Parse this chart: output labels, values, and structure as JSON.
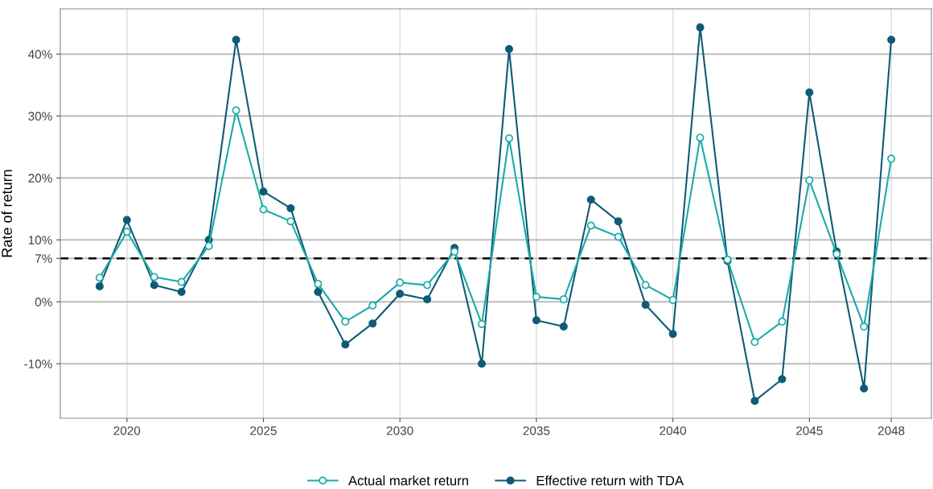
{
  "chart_data": {
    "type": "line",
    "ylabel": "Rate of return",
    "x": [
      2019,
      2020,
      2021,
      2022,
      2023,
      2024,
      2025,
      2026,
      2027,
      2028,
      2029,
      2030,
      2031,
      2032,
      2033,
      2034,
      2035,
      2036,
      2037,
      2038,
      2039,
      2040,
      2041,
      2042,
      2043,
      2044,
      2045,
      2046,
      2047,
      2048
    ],
    "series": [
      {
        "name": "Actual market return",
        "color": "#19aaa9",
        "marker": "circle_open",
        "values": [
          3.9,
          11.3,
          4.0,
          3.2,
          9.0,
          30.9,
          14.9,
          13.0,
          2.9,
          -3.2,
          -0.6,
          3.1,
          2.7,
          8.1,
          -3.6,
          26.4,
          0.8,
          0.4,
          12.3,
          10.5,
          2.7,
          0.3,
          26.5,
          6.8,
          -6.5,
          -3.2,
          19.6,
          7.7,
          -4.0,
          23.1
        ]
      },
      {
        "name": "Effective return with TDA",
        "color": "#0e5b75",
        "marker": "circle",
        "values": [
          2.5,
          13.2,
          2.7,
          1.6,
          10.0,
          42.3,
          17.8,
          15.1,
          1.6,
          -6.9,
          -3.5,
          1.3,
          0.4,
          8.7,
          -10.0,
          40.8,
          -3.0,
          -4.0,
          16.5,
          13.0,
          -0.5,
          -5.2,
          44.3,
          6.6,
          -16.0,
          -12.5,
          33.8,
          8.1,
          -14.0,
          42.3
        ]
      }
    ],
    "xlim": [
      2017.56,
      2049.47
    ],
    "ylim": [
      -18.8,
      47.3
    ],
    "xticks": [
      2020,
      2025,
      2030,
      2035,
      2040,
      2045,
      2048
    ],
    "yticks": [
      {
        "value": -10,
        "label": "-10%"
      },
      {
        "value": 0,
        "label": "0%"
      },
      {
        "value": 7,
        "label": "7%"
      },
      {
        "value": 10,
        "label": "10%"
      },
      {
        "value": 20,
        "label": "20%"
      },
      {
        "value": 30,
        "label": "30%"
      },
      {
        "value": 40,
        "label": "40%"
      }
    ],
    "ref_lines": [
      {
        "axis": "y",
        "value": 7,
        "color": "#000000",
        "line_style": "dashed"
      }
    ],
    "grid": true,
    "legend": "bottom",
    "line_style": "solid"
  }
}
